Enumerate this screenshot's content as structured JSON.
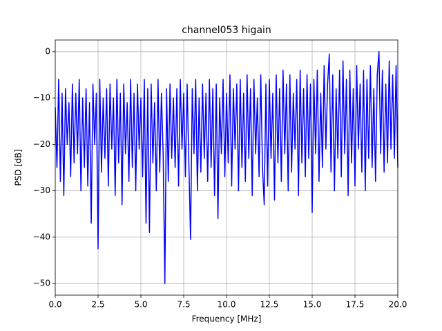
{
  "chart_data": {
    "type": "line",
    "title": "channel053 higain",
    "xlabel": "Frequency [MHz]",
    "ylabel": "PSD [dB]",
    "xlim": [
      0,
      20
    ],
    "ylim": [
      -52.5,
      2.5
    ],
    "xticks": [
      {
        "value": 0,
        "label": "0.0"
      },
      2.5,
      {
        "value": 5,
        "label": "5.0"
      },
      7.5,
      {
        "value": 10,
        "label": "10.0"
      },
      12.5,
      {
        "value": 15,
        "label": "15.0"
      },
      17.5,
      {
        "value": 20,
        "label": "20.0"
      }
    ],
    "yticks": [
      {
        "value": -50,
        "label": "−50"
      },
      {
        "value": -40,
        "label": "−40"
      },
      {
        "value": -30,
        "label": "−30"
      },
      {
        "value": -20,
        "label": "−20"
      },
      {
        "value": -10,
        "label": "−10"
      },
      0
    ],
    "grid": true,
    "x": [
      0,
      0.1,
      0.2,
      0.3,
      0.4,
      0.5,
      0.6,
      0.7,
      0.8,
      0.9,
      1,
      1.1,
      1.2,
      1.3,
      1.4,
      1.5,
      1.6,
      1.7,
      1.8,
      1.9,
      2,
      2.1,
      2.2,
      2.3,
      2.4,
      2.5,
      2.6,
      2.7,
      2.8,
      2.9,
      3,
      3.1,
      3.2,
      3.3,
      3.4,
      3.5,
      3.6,
      3.7,
      3.8,
      3.9,
      4,
      4.1,
      4.2,
      4.3,
      4.4,
      4.5,
      4.6,
      4.7,
      4.8,
      4.9,
      5,
      5.1,
      5.2,
      5.3,
      5.4,
      5.5,
      5.6,
      5.7,
      5.8,
      5.9,
      6,
      6.1,
      6.2,
      6.3,
      6.4,
      6.5,
      6.6,
      6.7,
      6.8,
      6.9,
      7,
      7.1,
      7.2,
      7.3,
      7.4,
      7.5,
      7.6,
      7.7,
      7.8,
      7.9,
      8,
      8.1,
      8.2,
      8.3,
      8.4,
      8.5,
      8.6,
      8.7,
      8.8,
      8.9,
      9,
      9.1,
      9.2,
      9.3,
      9.4,
      9.5,
      9.6,
      9.7,
      9.8,
      9.9,
      10,
      10.1,
      10.2,
      10.3,
      10.4,
      10.5,
      10.6,
      10.7,
      10.8,
      10.9,
      11,
      11.1,
      11.2,
      11.3,
      11.4,
      11.5,
      11.6,
      11.7,
      11.8,
      11.9,
      12,
      12.1,
      12.2,
      12.3,
      12.4,
      12.5,
      12.6,
      12.7,
      12.8,
      12.9,
      13,
      13.1,
      13.2,
      13.3,
      13.4,
      13.5,
      13.6,
      13.7,
      13.8,
      13.9,
      14,
      14.1,
      14.2,
      14.3,
      14.4,
      14.5,
      14.6,
      14.7,
      14.8,
      14.9,
      15,
      15.1,
      15.2,
      15.3,
      15.4,
      15.5,
      15.6,
      15.7,
      15.8,
      15.9,
      16,
      16.1,
      16.2,
      16.3,
      16.4,
      16.5,
      16.6,
      16.7,
      16.8,
      16.9,
      17,
      17.1,
      17.2,
      17.3,
      17.4,
      17.5,
      17.6,
      17.7,
      17.8,
      17.9,
      18,
      18.1,
      18.2,
      18.3,
      18.4,
      18.5,
      18.6,
      18.7,
      18.8,
      18.9,
      19,
      19.1,
      19.2,
      19.3,
      19.4,
      19.5,
      19.6,
      19.7,
      19.8,
      19.9,
      20
    ],
    "series": [
      {
        "color": "#0000ff",
        "values": [
          -12,
          -25,
          -6,
          -28,
          -9,
          -31,
          -8,
          -20,
          -11,
          -27,
          -7,
          -24,
          -9,
          -22,
          -6,
          -30,
          -10,
          -25,
          -8,
          -29,
          -11,
          -37,
          -7,
          -20,
          -9,
          -42.5,
          -6,
          -26,
          -10,
          -23,
          -8,
          -29,
          -7,
          -21,
          -10,
          -31,
          -6,
          -24,
          -9,
          -33,
          -7,
          -22,
          -11,
          -28,
          -6,
          -25,
          -9,
          -30,
          -7,
          -21,
          -10,
          -27,
          -6,
          -37,
          -8,
          -39,
          -7,
          -24,
          -11,
          -30,
          -6,
          -26,
          -9,
          -22,
          -50,
          -8,
          -28,
          -7,
          -23,
          -10,
          -25,
          -8,
          -29,
          -6,
          -21,
          -9,
          -27,
          -7,
          -24,
          -40.5,
          -8,
          -22,
          -6,
          -30,
          -10,
          -26,
          -7,
          -23,
          -9,
          -28,
          -6,
          -25,
          -8,
          -31,
          -7,
          -36,
          -10,
          -22,
          -6,
          -27,
          -9,
          -24,
          -5,
          -29,
          -8,
          -21,
          -7,
          -30,
          -6,
          -25,
          -9,
          -28,
          -5,
          -23,
          -8,
          -31,
          -6,
          -22,
          -10,
          -27,
          -5,
          -25,
          -33,
          -7,
          -29,
          -6,
          -23,
          -9,
          -32,
          -5,
          -24,
          -8,
          -28,
          -4,
          -22,
          -7,
          -30,
          -5,
          -26,
          -9,
          -21,
          -6,
          -31,
          -4,
          -24,
          -8,
          -27,
          -5,
          -23,
          -7,
          -34.7,
          -6,
          -22,
          -4,
          -28,
          -9,
          -25,
          -3,
          -21,
          -7,
          -0.5,
          -26,
          -5,
          -30,
          -8,
          -23,
          -4,
          -27,
          -2,
          -22,
          -6,
          -31,
          -4,
          -24,
          -8,
          -29,
          -3,
          -21,
          -7,
          -26,
          -4,
          -30,
          -6,
          -23,
          -3,
          -25,
          -8,
          -28,
          -5,
          0,
          -22,
          -4,
          -26,
          -7,
          -24,
          -2,
          -21,
          -5,
          -23,
          -3,
          -25
        ]
      }
    ]
  }
}
